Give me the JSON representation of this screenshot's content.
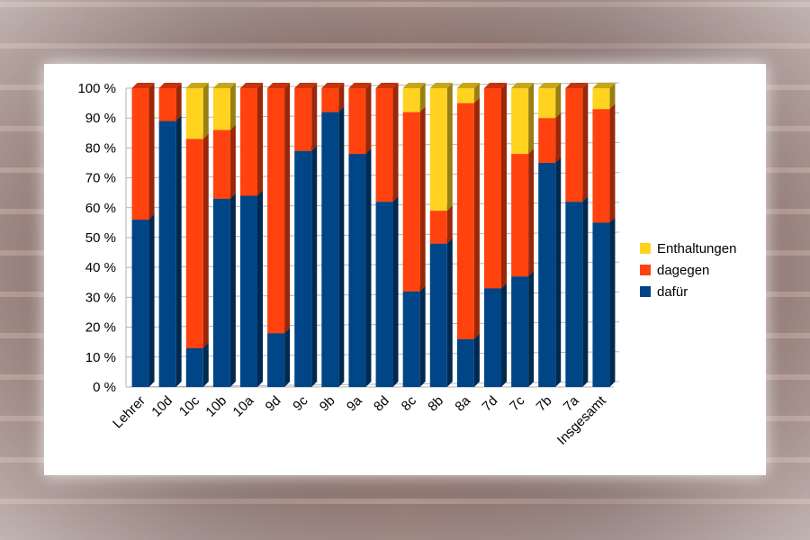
{
  "chart_data": {
    "type": "bar",
    "stacked": true,
    "categories": [
      "Lehrer",
      "10d",
      "10c",
      "10b",
      "10a",
      "9d",
      "9c",
      "9b",
      "9a",
      "8d",
      "8c",
      "8b",
      "8a",
      "7d",
      "7c",
      "7b",
      "7a",
      "Insgesamt"
    ],
    "series": [
      {
        "name": "dafür",
        "color": "#004586",
        "values": [
          56,
          89,
          13,
          63,
          64,
          18,
          79,
          92,
          78,
          62,
          32,
          48,
          16,
          33,
          37,
          75,
          62,
          55
        ]
      },
      {
        "name": "dagegen",
        "color": "#ff420e",
        "values": [
          44,
          11,
          70,
          23,
          36,
          82,
          21,
          8,
          22,
          38,
          60,
          11,
          79,
          67,
          41,
          15,
          38,
          38
        ]
      },
      {
        "name": "Enthaltungen",
        "color": "#ffd320",
        "values": [
          0,
          0,
          17,
          14,
          0,
          0,
          0,
          0,
          0,
          0,
          8,
          41,
          5,
          0,
          22,
          10,
          0,
          7
        ]
      }
    ],
    "yticks": [
      "0 %",
      "10 %",
      "20 %",
      "30 %",
      "40 %",
      "50 %",
      "60 %",
      "70 %",
      "80 %",
      "90 %",
      "100 %"
    ],
    "ylim": [
      0,
      100
    ],
    "legend": {
      "position": "right",
      "entries": [
        "Enthaltungen",
        "dagegen",
        "dafür"
      ]
    },
    "grid": true
  }
}
